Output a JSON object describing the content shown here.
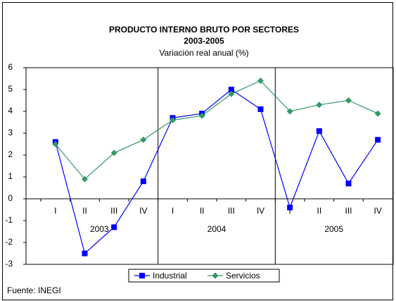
{
  "chart_data": {
    "type": "line",
    "title": "PRODUCTO INTERNO BRUTO POR SECTORES",
    "subtitle": "2003-2005",
    "ylabel": "Variación real anual (%)",
    "categories": [
      "I",
      "II",
      "III",
      "IV",
      "I",
      "II",
      "III",
      "IV",
      "I",
      "II",
      "III",
      "IV"
    ],
    "groups": [
      "2003",
      "2004",
      "2005"
    ],
    "series": [
      {
        "name": "Industrial",
        "color": "#0000ff",
        "marker": "square",
        "values": [
          2.6,
          -2.5,
          -1.3,
          0.8,
          3.7,
          3.9,
          5.0,
          4.1,
          -0.4,
          3.1,
          0.7,
          2.7
        ]
      },
      {
        "name": "Servicios",
        "color": "#339966",
        "marker": "diamond",
        "values": [
          2.5,
          0.9,
          2.1,
          2.7,
          3.6,
          3.8,
          4.8,
          5.4,
          4.0,
          4.3,
          4.5,
          3.9
        ]
      }
    ],
    "ylim": [
      -3,
      6
    ],
    "yticks": [
      -3,
      -2,
      -1,
      0,
      1,
      2,
      3,
      4,
      5,
      6
    ],
    "legend": "bottom",
    "source": "Fuente: INEGI"
  }
}
